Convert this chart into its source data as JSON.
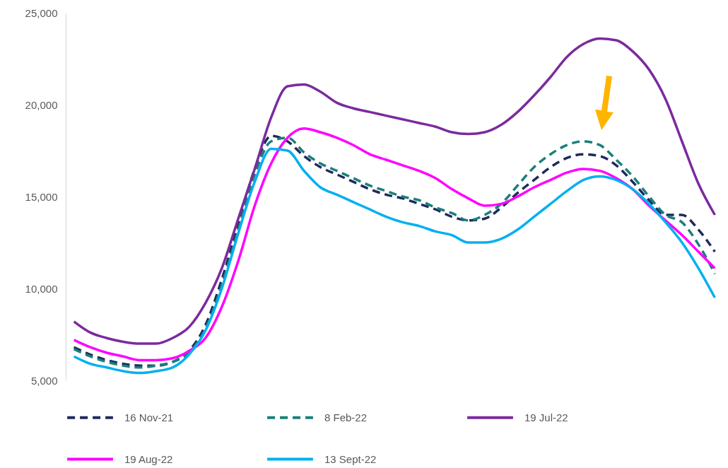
{
  "chart_data": {
    "type": "line",
    "categories": [
      null,
      null,
      null,
      null,
      null,
      null,
      null,
      null,
      null,
      null,
      null,
      null,
      null,
      null,
      null,
      null,
      null,
      null,
      null,
      null,
      null,
      null,
      null,
      null,
      null,
      null,
      null,
      null,
      null,
      null,
      null,
      null,
      null,
      null,
      null,
      null,
      null,
      null,
      null,
      null
    ],
    "ylim": [
      5000,
      25000
    ],
    "yticks": [
      {
        "value": 5000,
        "label": "5,000"
      },
      {
        "value": 10000,
        "label": "10,000"
      },
      {
        "value": 15000,
        "label": "15,000"
      },
      {
        "value": 20000,
        "label": "20,000"
      },
      {
        "value": 25000,
        "label": "25,000"
      }
    ],
    "grid": false,
    "legend": "bottom",
    "tick_labels": "y",
    "series": [
      {
        "name": "16 Nov-21",
        "color": "#1f2a5c",
        "line_style": "dashed",
        "values": [
          6800,
          6400,
          6100,
          5900,
          5800,
          5800,
          6000,
          6600,
          8000,
          10500,
          13500,
          16500,
          18300,
          18000,
          17200,
          16600,
          16200,
          15800,
          15400,
          15100,
          14900,
          14600,
          14300,
          13900,
          13700,
          13800,
          14400,
          15200,
          15900,
          16600,
          17100,
          17300,
          17200,
          16700,
          15800,
          14800,
          14000,
          14000,
          13200,
          12000
        ]
      },
      {
        "name": "8 Feb-22",
        "color": "#1a7f7a",
        "line_style": "dashed",
        "values": [
          6700,
          6300,
          6000,
          5800,
          5700,
          5800,
          6000,
          6500,
          7800,
          10200,
          13200,
          16200,
          18000,
          18200,
          17400,
          16800,
          16400,
          16000,
          15600,
          15300,
          15000,
          14800,
          14400,
          14100,
          13700,
          14000,
          14600,
          15600,
          16600,
          17300,
          17800,
          18000,
          17800,
          17000,
          16100,
          15000,
          14000,
          13600,
          12400,
          10800
        ]
      },
      {
        "name": "19 Jul-22",
        "color": "#7b2a9e",
        "line_style": "solid",
        "values": [
          8200,
          7600,
          7300,
          7100,
          7000,
          7000,
          7300,
          7900,
          9200,
          11100,
          13800,
          16500,
          19300,
          21000,
          21100,
          20700,
          20100,
          19800,
          19600,
          19400,
          19200,
          19000,
          18800,
          18500,
          18400,
          18500,
          18900,
          19600,
          20500,
          21500,
          22600,
          23300,
          23600,
          23500,
          22900,
          21900,
          20300,
          18000,
          15700,
          14000
        ]
      },
      {
        "name": "19 Aug-22",
        "color": "#ff00ff",
        "line_style": "solid",
        "values": [
          7200,
          6800,
          6500,
          6300,
          6100,
          6100,
          6200,
          6600,
          7300,
          9000,
          11500,
          14500,
          16800,
          18200,
          18700,
          18500,
          18200,
          17800,
          17300,
          17000,
          16700,
          16400,
          16000,
          15400,
          14900,
          14500,
          14600,
          15000,
          15500,
          15900,
          16300,
          16500,
          16400,
          16000,
          15400,
          14500,
          13700,
          12900,
          12000,
          11100
        ]
      },
      {
        "name": "13 Sept-22",
        "color": "#00b0f0",
        "line_style": "solid",
        "values": [
          6300,
          5900,
          5700,
          5500,
          5400,
          5500,
          5700,
          6400,
          7700,
          10000,
          13000,
          15800,
          17600,
          17500,
          16400,
          15500,
          15100,
          14700,
          14300,
          13900,
          13600,
          13400,
          13100,
          12900,
          12500,
          12500,
          12700,
          13200,
          13900,
          14600,
          15300,
          15900,
          16100,
          15900,
          15400,
          14600,
          13600,
          12500,
          11100,
          9500
        ]
      }
    ]
  }
}
